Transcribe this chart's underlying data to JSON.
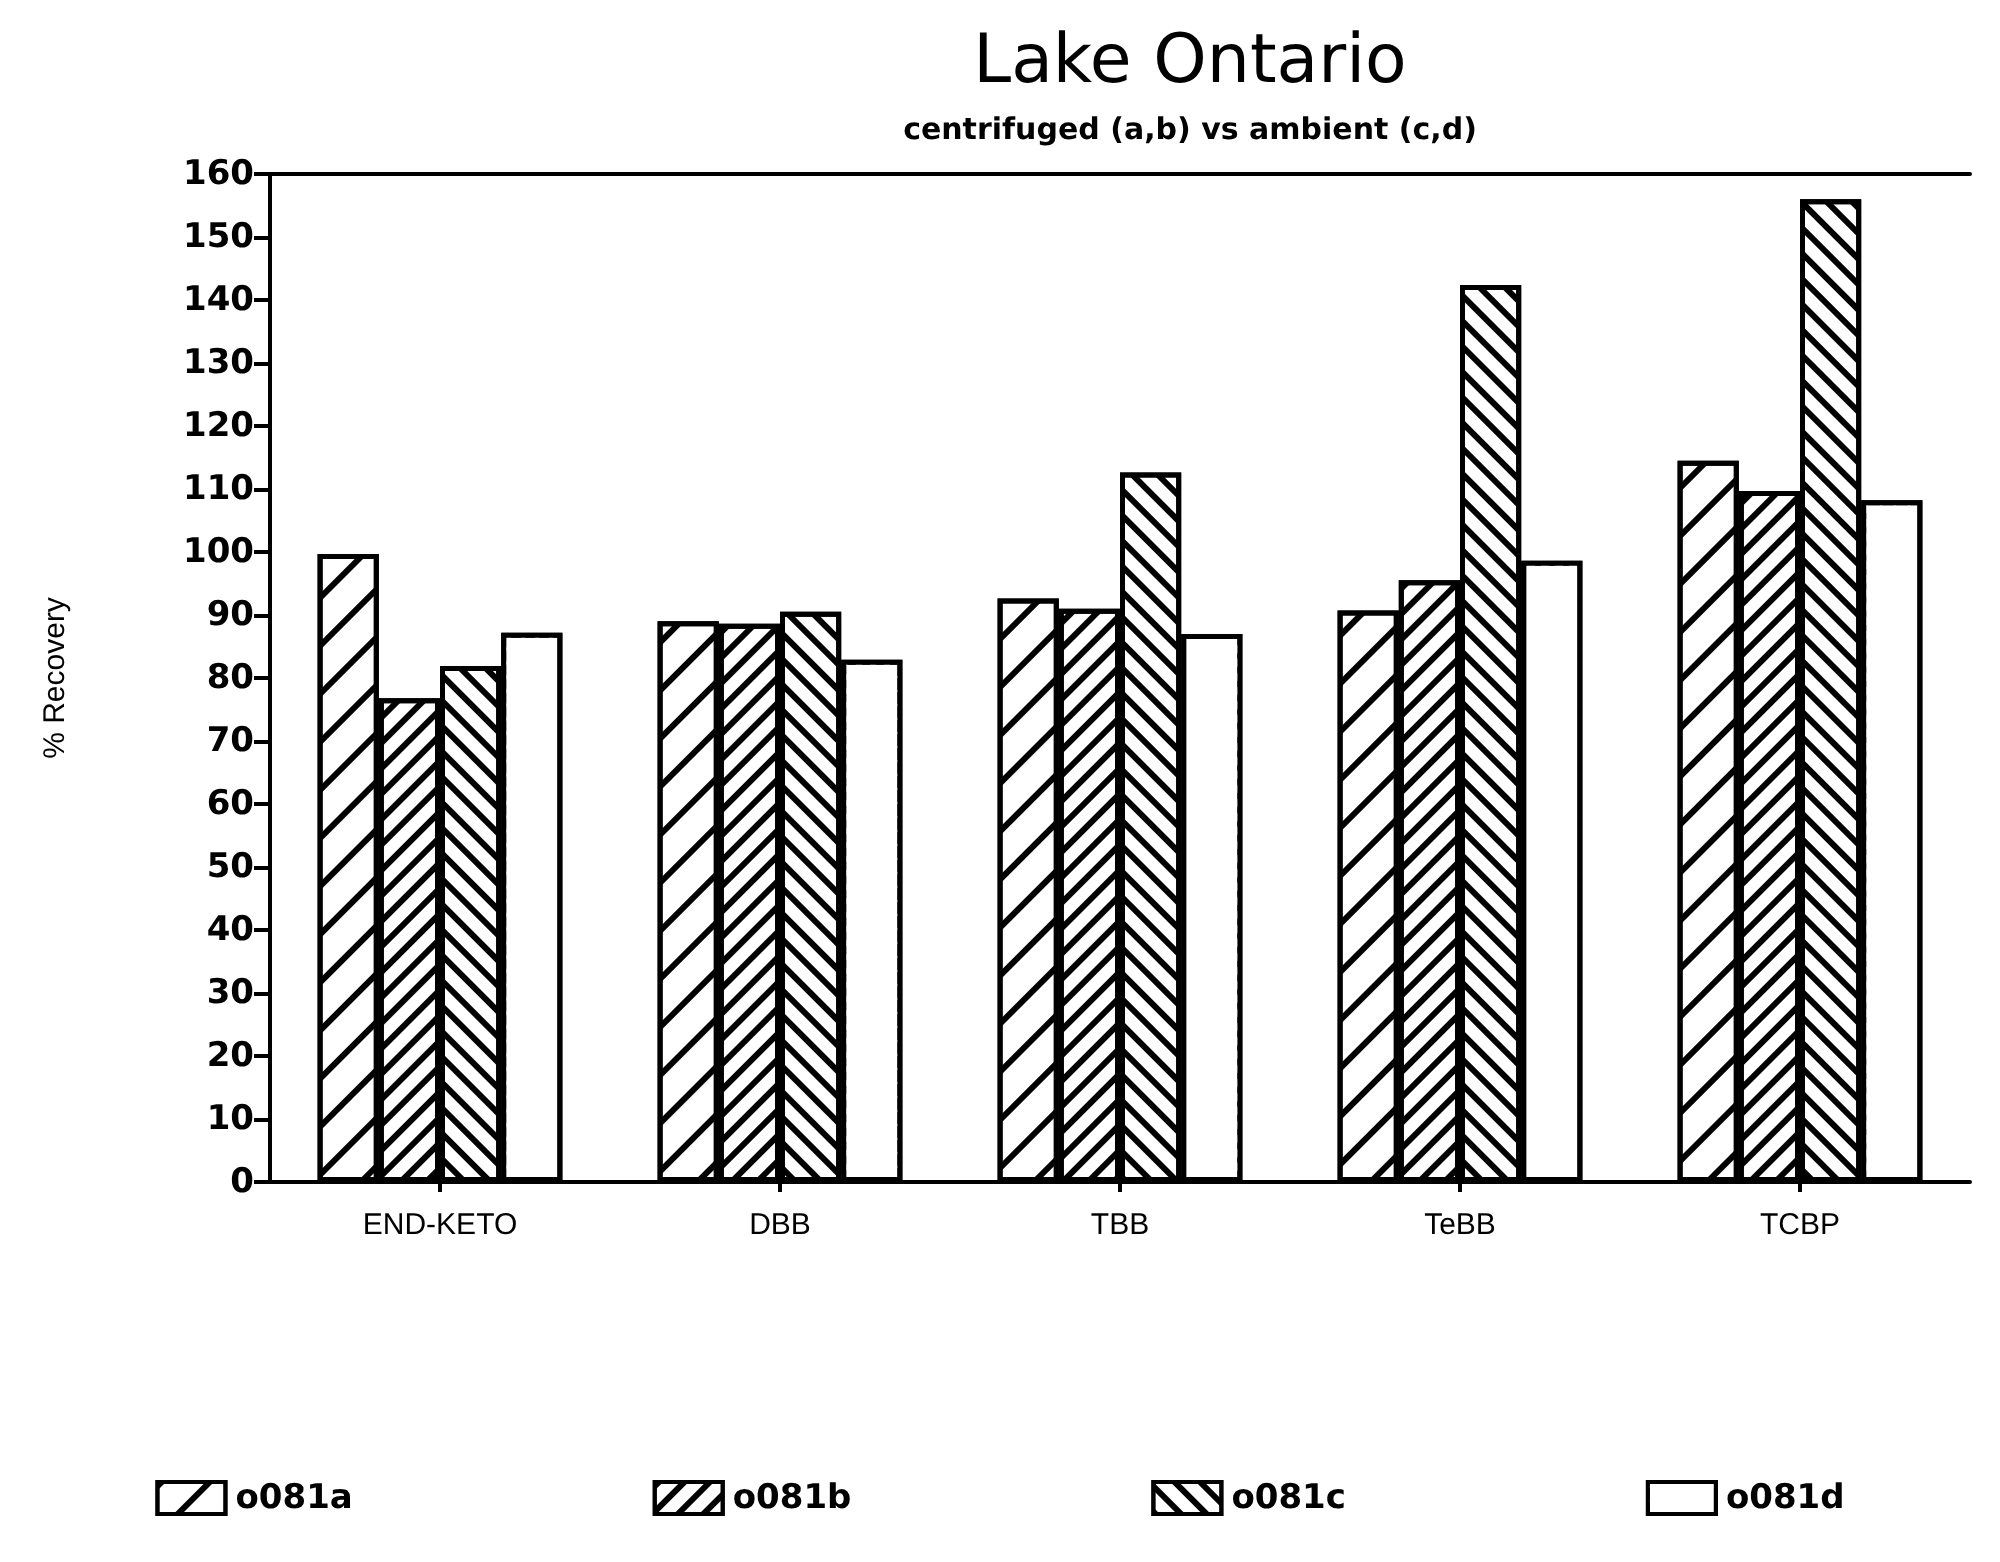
{
  "chart_data": {
    "type": "bar",
    "title": "Lake Ontario",
    "subtitle": "centrifuged (a,b) vs ambient (c,d)",
    "ylabel": "% Recovery",
    "categories": [
      "END-KETO",
      "DBB",
      "TBB",
      "TeBB",
      "TCBP"
    ],
    "series": [
      {
        "name": "o081a",
        "color": "#000000",
        "values": [
          99.7,
          89.0,
          92.6,
          90.7,
          114.5
        ]
      },
      {
        "name": "o081b",
        "color": "#000000",
        "values": [
          76.8,
          88.6,
          91.0,
          95.5,
          109.7
        ]
      },
      {
        "name": "o081c",
        "color": "#000000",
        "values": [
          81.9,
          90.5,
          112.6,
          142.4,
          156.0
        ]
      },
      {
        "name": "o081d",
        "color": "#000000",
        "values": [
          87.2,
          82.9,
          87.0,
          98.6,
          108.2
        ]
      }
    ],
    "ylim": [
      0,
      160
    ],
    "yticks": [
      0,
      10,
      20,
      30,
      40,
      50,
      60,
      70,
      80,
      90,
      100,
      110,
      120,
      130,
      140,
      150,
      160
    ],
    "grid": false,
    "legend": "bottom"
  }
}
